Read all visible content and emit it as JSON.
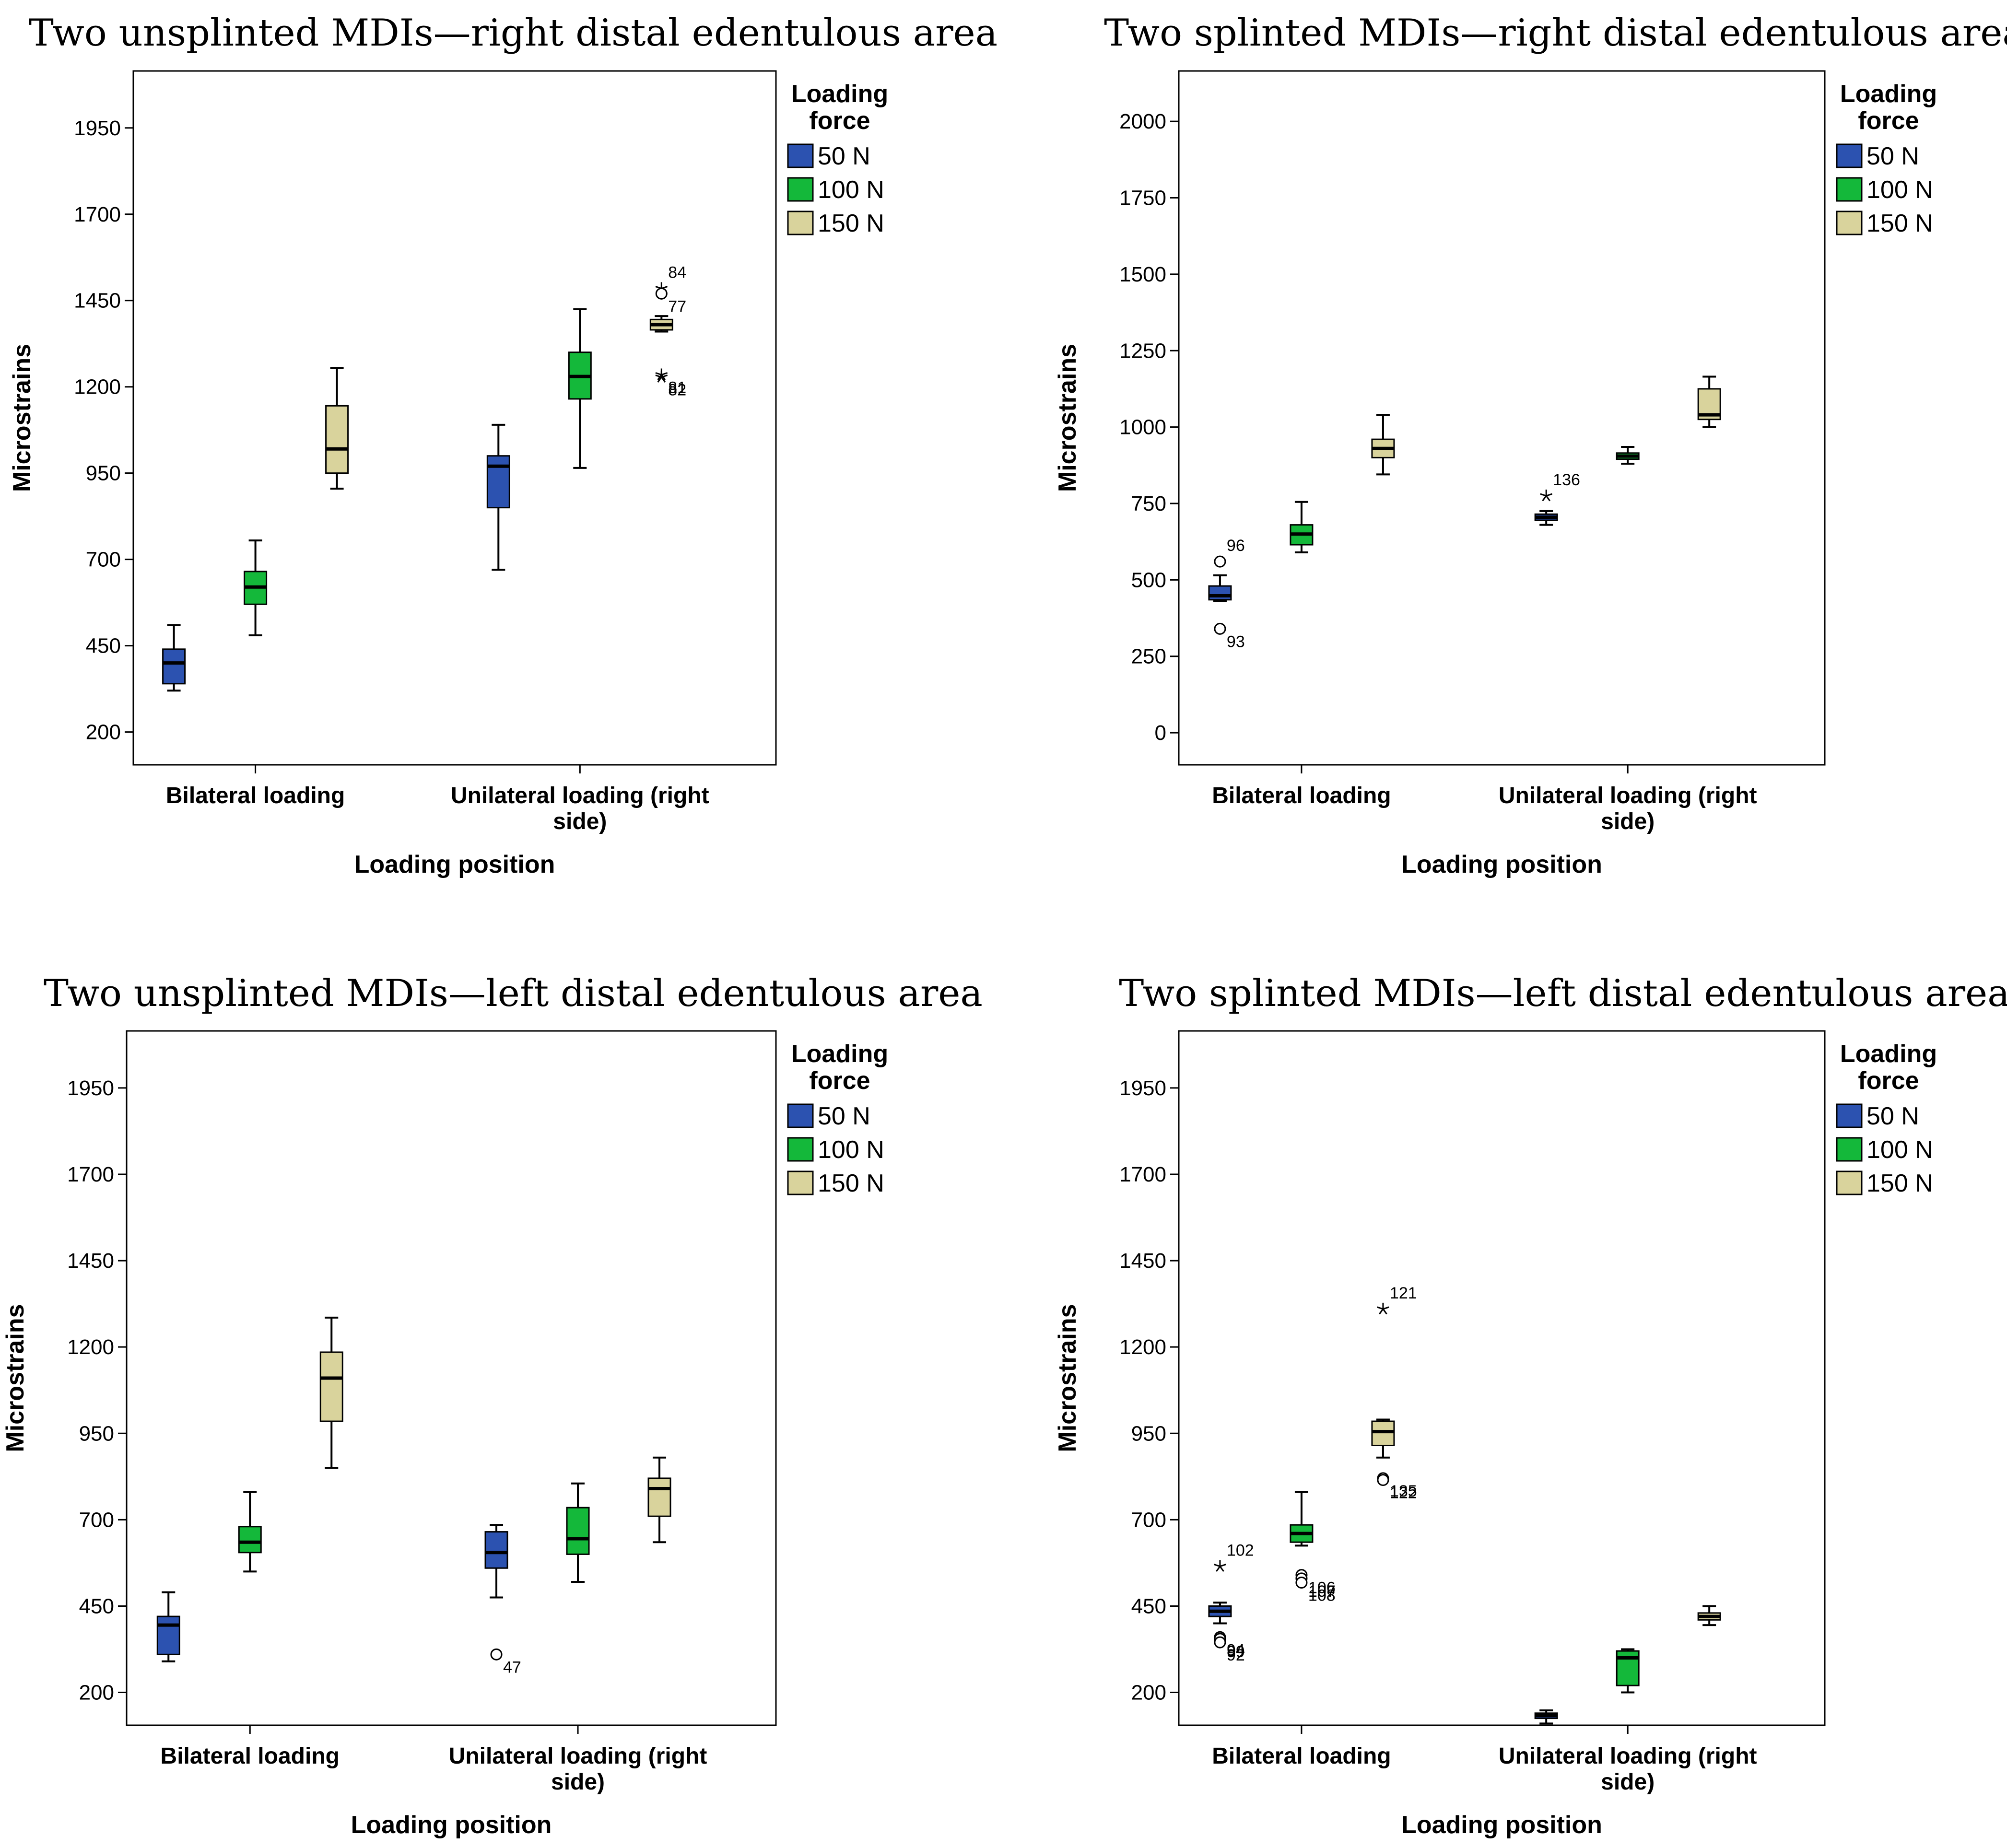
{
  "colors": {
    "50 N": "#2c52b0",
    "100 N": "#14b83a",
    "150 N": "#d9d39c",
    "axis": "#000000"
  },
  "chart_data": [
    {
      "type": "boxplot",
      "title": "Two unsplinted MDIs—right distal edentulous area",
      "xlabel": "Loading position",
      "ylabel": "Microstrains",
      "ylim": [
        105,
        2115
      ],
      "yticks": [
        200,
        450,
        700,
        950,
        1200,
        1450,
        1700,
        1950
      ],
      "categories": [
        [
          "Bilateral loading"
        ],
        [
          "Unilateral loading (right",
          "side)"
        ]
      ],
      "legend": {
        "title": [
          "Loading",
          "force"
        ],
        "entries": [
          "50 N",
          "100 N",
          "150 N"
        ],
        "position": "right"
      },
      "series": [
        {
          "name": "50 N",
          "boxes": [
            {
              "min": 320,
              "q1": 340,
              "median": 400,
              "q3": 440,
              "max": 510,
              "outliers": []
            },
            {
              "min": 670,
              "q1": 850,
              "median": 970,
              "q3": 1000,
              "max": 1090,
              "outliers": []
            }
          ]
        },
        {
          "name": "100 N",
          "boxes": [
            {
              "min": 480,
              "q1": 570,
              "median": 620,
              "q3": 665,
              "max": 755,
              "outliers": []
            },
            {
              "min": 965,
              "q1": 1165,
              "median": 1230,
              "q3": 1300,
              "max": 1425,
              "outliers": []
            }
          ]
        },
        {
          "name": "150 N",
          "boxes": [
            {
              "min": 905,
              "q1": 950,
              "median": 1020,
              "q3": 1145,
              "max": 1255,
              "outliers": []
            },
            {
              "min": 1360,
              "q1": 1365,
              "median": 1380,
              "q3": 1395,
              "max": 1405,
              "outliers": [
                {
                  "value": 1485,
                  "marker": "star",
                  "label": "84"
                },
                {
                  "value": 1470,
                  "marker": "circle",
                  "label": "77"
                },
                {
                  "value": 1235,
                  "marker": "star",
                  "label": "81"
                },
                {
                  "value": 1228,
                  "marker": "star",
                  "label": "82"
                }
              ]
            }
          ]
        }
      ]
    },
    {
      "type": "boxplot",
      "title": "Two splinted MDIs—right distal edentulous area",
      "xlabel": "Loading position",
      "ylabel": "Microstrains",
      "ylim": [
        -105,
        2165
      ],
      "yticks": [
        0,
        250,
        500,
        750,
        1000,
        1250,
        1500,
        1750,
        2000
      ],
      "categories": [
        [
          "Bilateral loading"
        ],
        [
          "Unilateral loading (right",
          "side)"
        ]
      ],
      "legend": {
        "title": [
          "Loading",
          "force"
        ],
        "entries": [
          "50 N",
          "100 N",
          "150 N"
        ],
        "position": "right"
      },
      "series": [
        {
          "name": "50 N",
          "boxes": [
            {
              "min": 430,
              "q1": 435,
              "median": 448,
              "q3": 480,
              "max": 515,
              "outliers": [
                {
                  "value": 560,
                  "marker": "circle",
                  "label": "96"
                },
                {
                  "value": 340,
                  "marker": "circle",
                  "label": "93"
                }
              ]
            },
            {
              "min": 680,
              "q1": 695,
              "median": 705,
              "q3": 715,
              "max": 725,
              "outliers": [
                {
                  "value": 775,
                  "marker": "star",
                  "label": "136"
                }
              ]
            }
          ]
        },
        {
          "name": "100 N",
          "boxes": [
            {
              "min": 590,
              "q1": 615,
              "median": 650,
              "q3": 680,
              "max": 755,
              "outliers": []
            },
            {
              "min": 880,
              "q1": 895,
              "median": 905,
              "q3": 915,
              "max": 935,
              "outliers": []
            }
          ]
        },
        {
          "name": "150 N",
          "boxes": [
            {
              "min": 845,
              "q1": 900,
              "median": 930,
              "q3": 960,
              "max": 1040,
              "outliers": []
            },
            {
              "min": 1000,
              "q1": 1025,
              "median": 1040,
              "q3": 1125,
              "max": 1165,
              "outliers": []
            }
          ]
        }
      ]
    },
    {
      "type": "boxplot",
      "title": "Two unsplinted MDIs—left distal edentulous area",
      "xlabel": "Loading position",
      "ylabel": "Microstrains",
      "ylim": [
        105,
        2115
      ],
      "yticks": [
        200,
        450,
        700,
        950,
        1200,
        1450,
        1700,
        1950
      ],
      "categories": [
        [
          "Bilateral loading"
        ],
        [
          "Unilateral loading (right",
          "side)"
        ]
      ],
      "legend": {
        "title": [
          "Loading",
          "force"
        ],
        "entries": [
          "50 N",
          "100 N",
          "150 N"
        ],
        "position": "right"
      },
      "series": [
        {
          "name": "50 N",
          "boxes": [
            {
              "min": 290,
              "q1": 310,
              "median": 395,
              "q3": 420,
              "max": 490,
              "outliers": []
            },
            {
              "min": 475,
              "q1": 560,
              "median": 605,
              "q3": 665,
              "max": 685,
              "outliers": [
                {
                  "value": 310,
                  "marker": "circle",
                  "label": "47"
                }
              ]
            }
          ]
        },
        {
          "name": "100 N",
          "boxes": [
            {
              "min": 550,
              "q1": 605,
              "median": 635,
              "q3": 680,
              "max": 780,
              "outliers": []
            },
            {
              "min": 520,
              "q1": 600,
              "median": 645,
              "q3": 735,
              "max": 805,
              "outliers": []
            }
          ]
        },
        {
          "name": "150 N",
          "boxes": [
            {
              "min": 850,
              "q1": 985,
              "median": 1110,
              "q3": 1185,
              "max": 1285,
              "outliers": []
            },
            {
              "min": 635,
              "q1": 710,
              "median": 790,
              "q3": 820,
              "max": 880,
              "outliers": []
            }
          ]
        }
      ]
    },
    {
      "type": "boxplot",
      "title": "Two splinted MDIs—left distal edentulous area",
      "xlabel": "Loading position",
      "ylabel": "Microstrains",
      "ylim": [
        105,
        2115
      ],
      "yticks": [
        200,
        450,
        700,
        950,
        1200,
        1450,
        1700,
        1950
      ],
      "categories": [
        [
          "Bilateral loading"
        ],
        [
          "Unilateral loading (right",
          "side)"
        ]
      ],
      "legend": {
        "title": [
          "Loading",
          "force"
        ],
        "entries": [
          "50 N",
          "100 N",
          "150 N"
        ],
        "position": "right"
      },
      "series": [
        {
          "name": "50 N",
          "boxes": [
            {
              "min": 400,
              "q1": 420,
              "median": 435,
              "q3": 450,
              "max": 460,
              "outliers": [
                {
                  "value": 565,
                  "marker": "star",
                  "label": "102"
                },
                {
                  "value": 360,
                  "marker": "circle",
                  "label": "94"
                },
                {
                  "value": 355,
                  "marker": "circle",
                  "label": "99"
                },
                {
                  "value": 345,
                  "marker": "circle",
                  "label": "92"
                }
              ]
            },
            {
              "min": 110,
              "q1": 125,
              "median": 133,
              "q3": 140,
              "max": 148,
              "outliers": []
            }
          ]
        },
        {
          "name": "100 N",
          "boxes": [
            {
              "min": 625,
              "q1": 635,
              "median": 660,
              "q3": 685,
              "max": 780,
              "outliers": [
                {
                  "value": 540,
                  "marker": "circle",
                  "label": "106"
                },
                {
                  "value": 530,
                  "marker": "circle",
                  "label": "107"
                },
                {
                  "value": 518,
                  "marker": "circle",
                  "label": "108"
                }
              ]
            },
            {
              "min": 200,
              "q1": 220,
              "median": 300,
              "q3": 320,
              "max": 325,
              "outliers": []
            }
          ]
        },
        {
          "name": "150 N",
          "boxes": [
            {
              "min": 880,
              "q1": 915,
              "median": 955,
              "q3": 985,
              "max": 990,
              "outliers": [
                {
                  "value": 1310,
                  "marker": "star",
                  "label": "121"
                },
                {
                  "value": 820,
                  "marker": "circle",
                  "label": "135"
                },
                {
                  "value": 815,
                  "marker": "circle",
                  "label": "122"
                }
              ]
            },
            {
              "min": 395,
              "q1": 410,
              "median": 420,
              "q3": 430,
              "max": 450,
              "outliers": []
            }
          ]
        }
      ]
    }
  ]
}
